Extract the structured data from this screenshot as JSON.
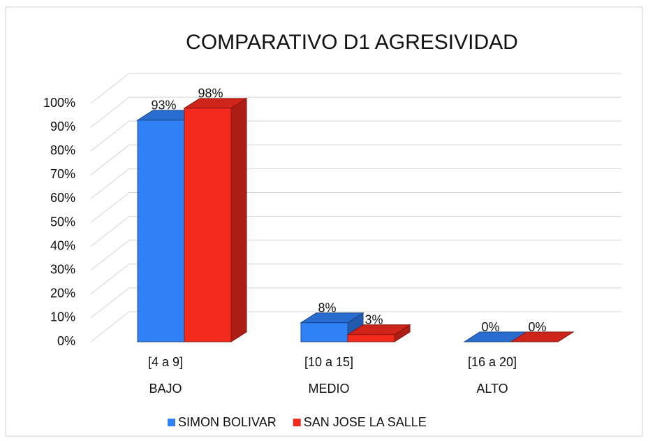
{
  "chart_data": {
    "type": "bar3d",
    "title": "COMPARATIVO   D1 AGRESIVIDAD",
    "categories": [
      "[4 a 9]",
      "[10 a 15]",
      "[16 a 20]"
    ],
    "category_groups": [
      "BAJO",
      "MEDIO",
      "ALTO"
    ],
    "series": [
      {
        "name": "SIMON BOLIVAR",
        "color": "#2f7ff5",
        "values": [
          93,
          8,
          0
        ],
        "value_labels": [
          "93%",
          "8%",
          "0%"
        ]
      },
      {
        "name": "SAN JOSE LA SALLE",
        "color": "#f42a1e",
        "values": [
          98,
          3,
          0
        ],
        "value_labels": [
          "98%",
          "3%",
          "0%"
        ]
      }
    ],
    "ylim": [
      0,
      100
    ],
    "yticks": [
      {
        "value": 0,
        "label": "0%"
      },
      {
        "value": 10,
        "label": "10%"
      },
      {
        "value": 20,
        "label": "20%"
      },
      {
        "value": 30,
        "label": "30%"
      },
      {
        "value": 40,
        "label": "40%"
      },
      {
        "value": 50,
        "label": "50%"
      },
      {
        "value": 60,
        "label": "60%"
      },
      {
        "value": 70,
        "label": "70%"
      },
      {
        "value": 80,
        "label": "80%"
      },
      {
        "value": 90,
        "label": "90%"
      },
      {
        "value": 100,
        "label": "100%"
      }
    ],
    "grid": true,
    "legend": "bottom"
  }
}
